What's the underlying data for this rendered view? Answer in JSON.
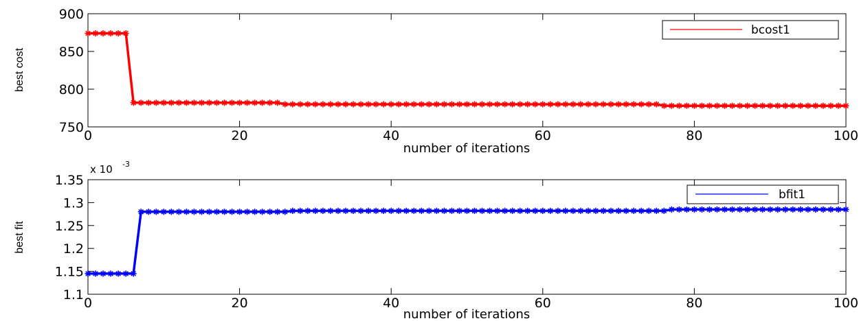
{
  "chart_data": [
    {
      "type": "line",
      "title": "",
      "xlabel": "number of iterations",
      "ylabel": "best cost",
      "xlim": [
        0,
        100
      ],
      "ylim": [
        750,
        900
      ],
      "xticks": [
        "0",
        "20",
        "40",
        "60",
        "80",
        "100"
      ],
      "yticks": [
        "750",
        "800",
        "850",
        "900"
      ],
      "legend_position": "top-right",
      "grid": false,
      "series": [
        {
          "name": "bcost1",
          "color": "#ff0000",
          "marker": "asterisk",
          "x": [
            0,
            5,
            6,
            25,
            26,
            75,
            76,
            100
          ],
          "y": [
            874,
            874,
            782,
            782,
            780,
            780,
            778,
            778
          ]
        }
      ]
    },
    {
      "type": "line",
      "title": "",
      "xlabel": "number of iterations",
      "ylabel": "best fit",
      "exponent_base": "x 10",
      "exponent_power": "-3",
      "xlim": [
        0,
        100
      ],
      "ylim": [
        1.1,
        1.35
      ],
      "xticks": [
        "0",
        "20",
        "40",
        "60",
        "80",
        "100"
      ],
      "yticks": [
        "1.1",
        "1.15",
        "1.2",
        "1.25",
        "1.3",
        "1.35"
      ],
      "legend_position": "top-right",
      "grid": false,
      "series": [
        {
          "name": "bfit1",
          "color": "#0000ff",
          "marker": "asterisk",
          "x": [
            0,
            6,
            7,
            26,
            27,
            76,
            77,
            100
          ],
          "y": [
            1.145,
            1.145,
            1.28,
            1.28,
            1.282,
            1.282,
            1.285,
            1.285
          ]
        }
      ]
    }
  ]
}
